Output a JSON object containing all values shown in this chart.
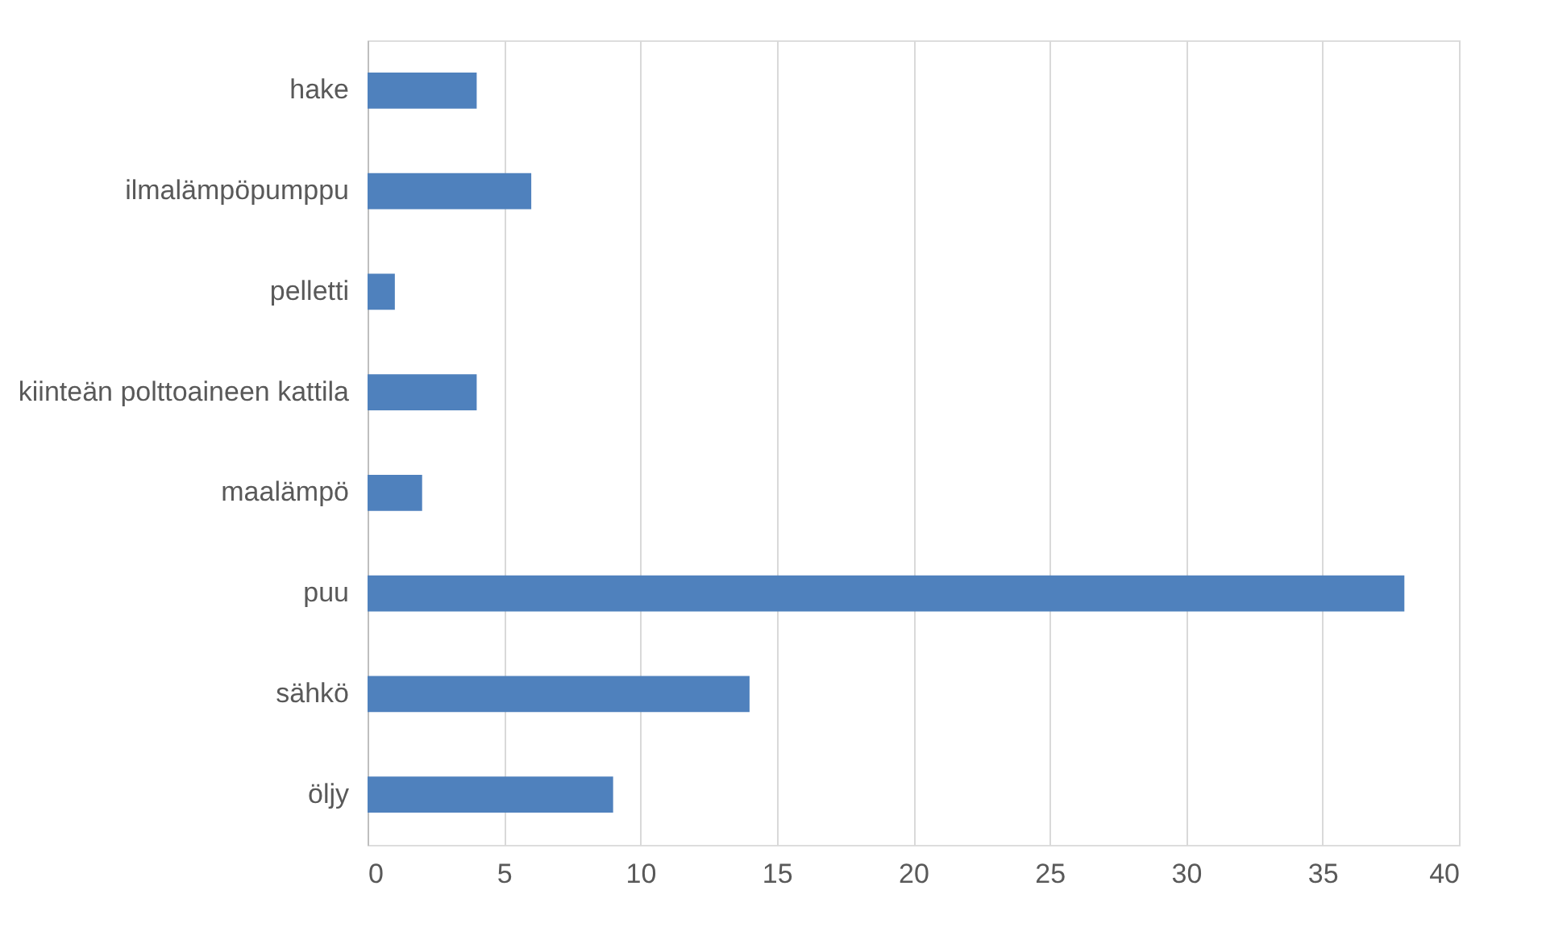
{
  "chart_data": {
    "type": "bar",
    "orientation": "horizontal",
    "categories": [
      "hake",
      "ilmalämpöpumppu",
      "pelletti",
      "kiinteän polttoaineen kattila",
      "maalämpö",
      "puu",
      "sähkö",
      "öljy"
    ],
    "values": [
      4,
      6,
      1,
      4,
      2,
      38,
      14,
      9
    ],
    "color": "#4f81bd",
    "xlim": [
      0,
      40
    ],
    "xticks": [
      0,
      5,
      10,
      15,
      20,
      25,
      30,
      35,
      40
    ],
    "grid": "x"
  }
}
